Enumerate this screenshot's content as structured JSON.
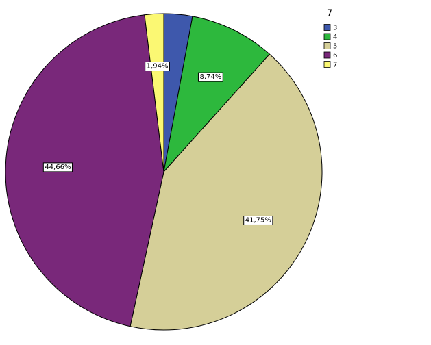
{
  "chart_data": {
    "type": "pie",
    "legend_title": "7",
    "categories": [
      "3",
      "4",
      "5",
      "6",
      "7"
    ],
    "values": [
      2.91,
      8.74,
      41.75,
      44.66,
      1.94
    ],
    "value_labels": [
      null,
      "8,74%",
      "41,75%",
      "44,66%",
      "1,94%"
    ],
    "colors": [
      "#3e58ac",
      "#2db83d",
      "#d5cf98",
      "#79287a",
      "#fbf873"
    ],
    "legend": "top-right"
  }
}
